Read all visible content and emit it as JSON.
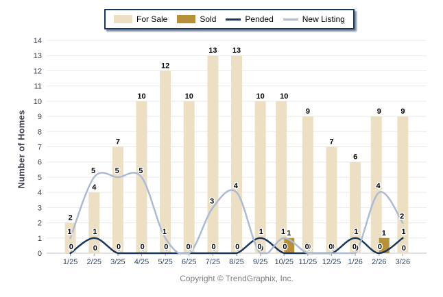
{
  "footer": "Copyright © TrendGraphix, Inc.",
  "chart_data": {
    "type": "bar+line",
    "title": "",
    "xlabel": "",
    "ylabel": "Number of Homes",
    "ylim": [
      0,
      14
    ],
    "ytick_step": 1,
    "grid": true,
    "legend_position": "top",
    "categories": [
      "1/25",
      "2/25",
      "3/25",
      "4/25",
      "5/25",
      "6/25",
      "7/25",
      "8/25",
      "9/25",
      "10/25",
      "11/25",
      "12/25",
      "1/26",
      "2/26",
      "3/26"
    ],
    "series": [
      {
        "name": "For Sale",
        "type": "bar",
        "color": "#EDDFC3",
        "values": [
          2,
          4,
          7,
          10,
          12,
          10,
          13,
          13,
          10,
          10,
          9,
          7,
          6,
          9,
          9
        ]
      },
      {
        "name": "Sold",
        "type": "bar",
        "color": "#B9903A",
        "values": [
          0,
          0,
          0,
          0,
          0,
          0,
          0,
          0,
          0,
          1,
          0,
          0,
          0,
          1,
          0
        ]
      },
      {
        "name": "Pended",
        "type": "line",
        "color": "#17375E",
        "values": [
          0,
          1,
          0,
          0,
          0,
          0,
          0,
          0,
          1,
          0,
          0,
          0,
          1,
          0,
          1
        ]
      },
      {
        "name": "New Listing",
        "type": "line",
        "color": "#ADBAD4",
        "values": [
          1,
          5,
          5,
          5,
          1,
          0,
          3,
          4,
          0,
          1,
          0,
          0,
          0,
          4,
          2
        ]
      }
    ],
    "axis_colors": {
      "grid": "#E9E9E9",
      "baseline": "#C0C0C0",
      "tick": "#999999",
      "x_text": "#2C4977",
      "y_text": "#383C4A",
      "label_text": "#000000"
    }
  }
}
